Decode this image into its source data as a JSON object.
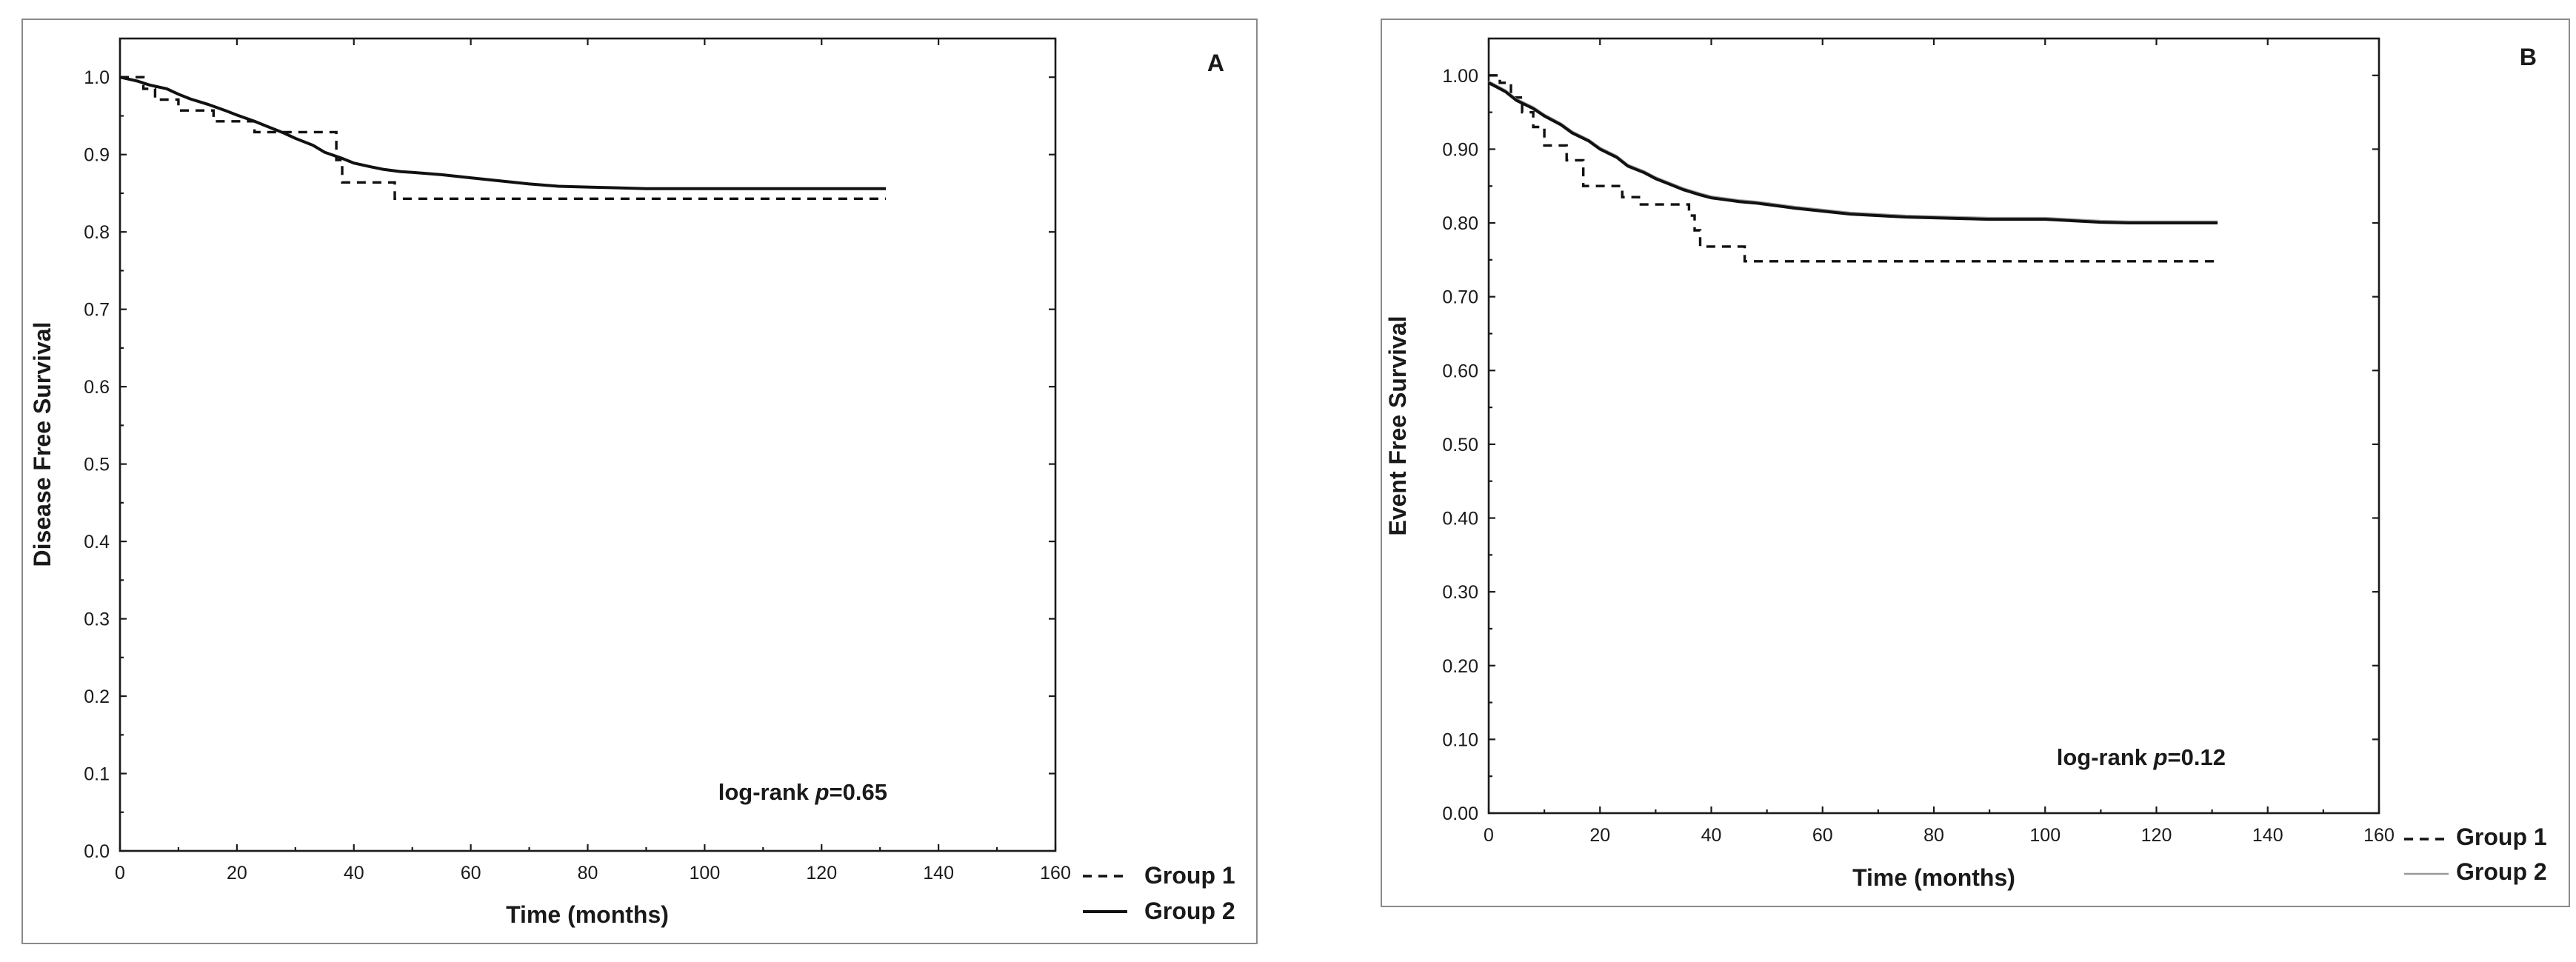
{
  "chart_data": [
    {
      "type": "line",
      "panel_label": "A",
      "xlabel": "Time (months)",
      "ylabel": "Disease Free Survival",
      "xlim": [
        0,
        160
      ],
      "ylim": [
        0.0,
        1.05
      ],
      "x_ticks": [
        "0",
        "20",
        "40",
        "60",
        "80",
        "100",
        "120",
        "140",
        "160"
      ],
      "y_ticks": [
        "0.0",
        "0.1",
        "0.2",
        "0.3",
        "0.4",
        "0.5",
        "0.6",
        "0.7",
        "0.8",
        "0.9",
        "1.0"
      ],
      "annotation": {
        "prefix": "log-rank ",
        "p": "p",
        "value": "=0.65"
      },
      "legend": [
        "Group 1",
        "Group 2"
      ],
      "series": [
        {
          "name": "Group 1",
          "style": "dashed",
          "x": [
            0,
            4,
            4,
            6,
            6,
            10,
            10,
            16,
            16,
            23,
            23,
            37,
            37,
            38,
            38,
            47,
            47,
            131
          ],
          "y": [
            1.0,
            1.0,
            0.985,
            0.985,
            0.971,
            0.971,
            0.957,
            0.957,
            0.943,
            0.943,
            0.929,
            0.929,
            0.893,
            0.893,
            0.864,
            0.864,
            0.843,
            0.843
          ]
        },
        {
          "name": "Group 2",
          "style": "solid",
          "x": [
            0,
            3,
            5,
            8,
            10,
            12,
            15,
            18,
            20,
            23,
            25,
            28,
            30,
            33,
            35,
            38,
            40,
            43,
            45,
            48,
            50,
            55,
            60,
            65,
            70,
            75,
            80,
            85,
            90,
            100,
            110,
            120,
            131
          ],
          "y": [
            1.0,
            0.995,
            0.99,
            0.985,
            0.978,
            0.972,
            0.965,
            0.957,
            0.951,
            0.943,
            0.937,
            0.928,
            0.921,
            0.912,
            0.903,
            0.895,
            0.889,
            0.884,
            0.881,
            0.878,
            0.877,
            0.874,
            0.87,
            0.866,
            0.862,
            0.859,
            0.858,
            0.857,
            0.856,
            0.856,
            0.856,
            0.856,
            0.856
          ]
        }
      ]
    },
    {
      "type": "line",
      "panel_label": "B",
      "xlabel": "Time (months)",
      "ylabel": "Event Free Survival",
      "xlim": [
        0,
        160
      ],
      "ylim": [
        0.0,
        1.05
      ],
      "x_ticks": [
        "0",
        "20",
        "40",
        "60",
        "80",
        "100",
        "120",
        "140",
        "160"
      ],
      "y_ticks": [
        "0.00",
        "0.10",
        "0.20",
        "0.30",
        "0.40",
        "0.50",
        "0.60",
        "0.70",
        "0.80",
        "0.90",
        "1.00"
      ],
      "annotation": {
        "prefix": "log-rank ",
        "p": "p",
        "value": "=0.12"
      },
      "legend": [
        "Group 1",
        "Group 2"
      ],
      "series": [
        {
          "name": "Group 1",
          "style": "dashed",
          "x": [
            0,
            2,
            2,
            4,
            4,
            6,
            6,
            8,
            8,
            10,
            10,
            14,
            14,
            17,
            17,
            24,
            24,
            27,
            27,
            36,
            36,
            37,
            37,
            38,
            38,
            46,
            46,
            131
          ],
          "y": [
            1.0,
            1.0,
            0.99,
            0.99,
            0.97,
            0.97,
            0.95,
            0.95,
            0.93,
            0.93,
            0.905,
            0.905,
            0.885,
            0.885,
            0.85,
            0.85,
            0.835,
            0.835,
            0.825,
            0.825,
            0.81,
            0.81,
            0.79,
            0.79,
            0.768,
            0.768,
            0.748,
            0.748
          ]
        },
        {
          "name": "Group 2",
          "style": "solid",
          "x": [
            0,
            3,
            5,
            8,
            10,
            13,
            15,
            18,
            20,
            23,
            25,
            28,
            30,
            33,
            35,
            38,
            40,
            43,
            45,
            48,
            50,
            55,
            60,
            65,
            70,
            75,
            80,
            85,
            90,
            100,
            105,
            110,
            115,
            120,
            131
          ],
          "y": [
            0.99,
            0.978,
            0.966,
            0.955,
            0.945,
            0.933,
            0.922,
            0.911,
            0.9,
            0.889,
            0.877,
            0.868,
            0.86,
            0.851,
            0.845,
            0.838,
            0.834,
            0.831,
            0.829,
            0.827,
            0.825,
            0.82,
            0.816,
            0.812,
            0.81,
            0.808,
            0.807,
            0.806,
            0.805,
            0.805,
            0.803,
            0.801,
            0.8,
            0.8,
            0.8
          ]
        }
      ]
    }
  ]
}
